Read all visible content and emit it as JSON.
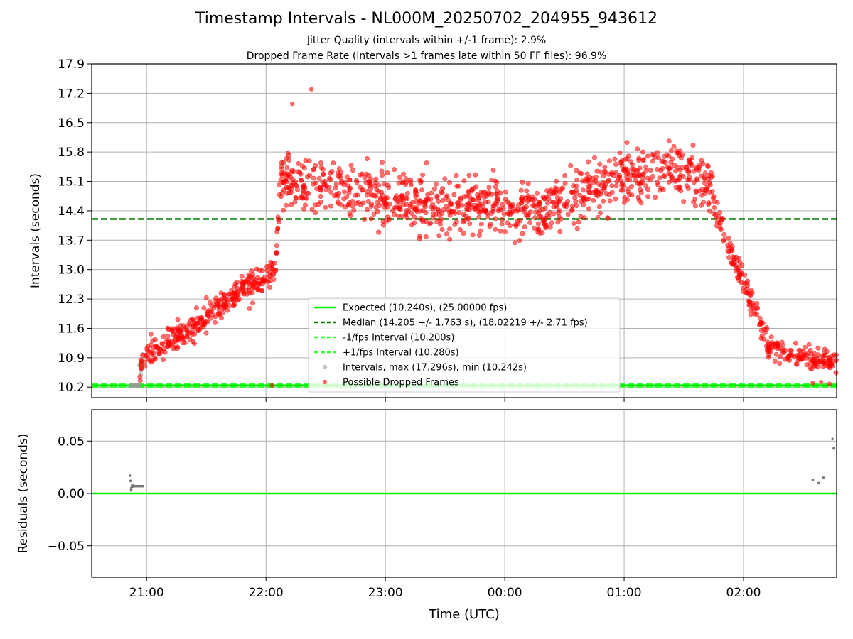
{
  "titles": {
    "main": "Timestamp Intervals - NL000M_20250702_204955_943612",
    "sub1": "Jitter Quality (intervals within +/-1 frame): 2.9%",
    "sub2": "Dropped Frame Rate (intervals >1 frames late within 50 FF files): 96.9%"
  },
  "colors": {
    "expected": "#00ee00",
    "median": "#008000",
    "bounds": "#33ff33",
    "intervals": "#999999",
    "dropped": "#ff0000",
    "residuals": "#777777",
    "grid": "#b0b0b0"
  },
  "chart_data": [
    {
      "type": "scatter",
      "panel": "intervals",
      "title": "",
      "xlabel": "",
      "ylabel": "Intervals (seconds)",
      "x_ticks": [
        "21:00",
        "22:00",
        "23:00",
        "00:00",
        "01:00",
        "02:00"
      ],
      "x_tick_hours": [
        21,
        22,
        23,
        24,
        25,
        26
      ],
      "xlim_hours": [
        20.54,
        26.78
      ],
      "y_ticks": [
        "10.2",
        "10.9",
        "11.6",
        "12.3",
        "13.0",
        "13.7",
        "14.4",
        "15.1",
        "15.8",
        "16.5",
        "17.2",
        "17.9"
      ],
      "ylim": [
        9.95,
        17.9
      ],
      "grid": true,
      "legend_position": "lower center",
      "lines": [
        {
          "name": "Expected (10.240s), (25.00000 fps)",
          "y": 10.24,
          "style": "solid"
        },
        {
          "name": "Median (14.205 +/- 1.763 s), (18.02219 +/- 2.71 fps)",
          "y": 14.205,
          "style": "dashed"
        },
        {
          "name": "-1/fps Interval (10.200s)",
          "y": 10.2,
          "style": "dashed"
        },
        {
          "name": "+1/fps Interval (10.280s)",
          "y": 10.28,
          "style": "dashed"
        }
      ],
      "series": [
        {
          "name": "Intervals, max (17.296s), min (10.242s)",
          "max": 17.296,
          "min": 10.242,
          "points": [
            [
              20.87,
              10.24
            ],
            [
              20.88,
              10.24
            ],
            [
              20.89,
              10.25
            ],
            [
              20.9,
              10.24
            ],
            [
              20.91,
              10.25
            ],
            [
              20.92,
              10.24
            ],
            [
              20.93,
              10.24
            ],
            [
              20.94,
              10.25
            ]
          ]
        },
        {
          "name": "Possible Dropped Frames",
          "trend_hours": [
            20.94,
            21.0,
            21.2,
            21.4,
            21.6,
            21.8,
            22.0,
            22.08,
            22.12,
            22.5,
            22.8,
            23.0,
            23.3,
            23.6,
            23.9,
            24.2,
            24.5,
            24.8,
            25.1,
            25.4,
            25.6,
            25.7,
            25.75,
            25.8,
            25.9,
            26.0,
            26.1,
            26.2,
            26.4,
            26.6,
            26.78
          ],
          "trend_values": [
            10.6,
            11.0,
            11.3,
            11.6,
            12.1,
            12.5,
            12.8,
            13.1,
            15.1,
            15.0,
            14.85,
            14.7,
            14.6,
            14.55,
            14.5,
            14.45,
            14.6,
            15.0,
            15.3,
            15.45,
            15.2,
            15.0,
            14.6,
            14.1,
            13.4,
            12.7,
            12.1,
            11.2,
            10.95,
            10.85,
            10.85
          ],
          "scatter_sd": {
            "ramp": 0.22,
            "plateau": 0.42,
            "tail": 0.18
          },
          "outliers": [
            [
              22.22,
              16.95
            ],
            [
              22.38,
              17.296
            ],
            [
              22.05,
              10.24
            ],
            [
              26.58,
              10.3
            ],
            [
              26.65,
              10.32
            ],
            [
              26.72,
              10.28
            ]
          ]
        }
      ]
    },
    {
      "type": "scatter",
      "panel": "residuals",
      "title": "",
      "xlabel": "Time (UTC)",
      "ylabel": "Residuals (seconds)",
      "x_ticks": [
        "21:00",
        "22:00",
        "23:00",
        "00:00",
        "01:00",
        "02:00"
      ],
      "x_tick_hours": [
        21,
        22,
        23,
        24,
        25,
        26
      ],
      "xlim_hours": [
        20.54,
        26.78
      ],
      "y_ticks": [
        "−0.05",
        "0.00",
        "0.05"
      ],
      "y_tick_values": [
        -0.05,
        0.0,
        0.05
      ],
      "ylim": [
        -0.08,
        0.08
      ],
      "grid": true,
      "zero_line": 0.0,
      "series": [
        {
          "name": "Residuals",
          "points": [
            [
              20.86,
              0.017
            ],
            [
              20.865,
              0.012
            ],
            [
              20.87,
              0.003
            ],
            [
              20.875,
              0.006
            ],
            [
              20.88,
              0.008
            ],
            [
              20.885,
              0.007
            ],
            [
              20.89,
              0.007
            ],
            [
              20.9,
              0.007
            ],
            [
              20.91,
              0.007
            ],
            [
              20.92,
              0.007
            ],
            [
              20.93,
              0.007
            ],
            [
              20.94,
              0.007
            ],
            [
              20.95,
              0.007
            ],
            [
              20.96,
              0.007
            ],
            [
              20.968,
              0.007
            ],
            [
              20.87,
              0.005
            ],
            [
              20.88,
              0.006
            ],
            [
              26.58,
              0.013
            ],
            [
              26.63,
              0.01
            ],
            [
              26.67,
              0.015
            ],
            [
              26.745,
              0.052
            ],
            [
              26.755,
              0.043
            ]
          ]
        }
      ]
    }
  ]
}
